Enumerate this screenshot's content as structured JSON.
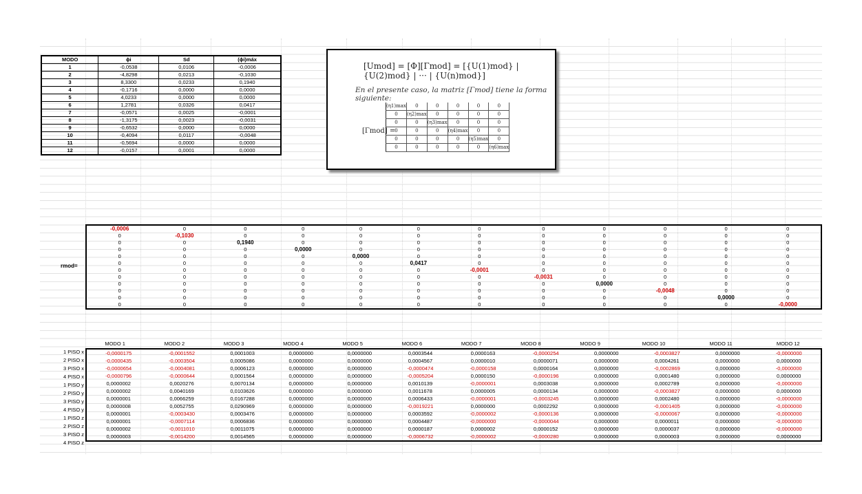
{
  "modo_table": {
    "headers": [
      "MODO",
      "ϕi",
      "Sd",
      "(ϕi)máx"
    ],
    "rows": [
      [
        "1",
        "-0,0538",
        "0,0106",
        "-0,0006"
      ],
      [
        "2",
        "-4,8298",
        "0,0213",
        "-0,1030"
      ],
      [
        "3",
        "8,3300",
        "0,0233",
        "0,1940"
      ],
      [
        "4",
        "-0,1716",
        "0,0000",
        "0,0000"
      ],
      [
        "5",
        "4,0233",
        "0,0000",
        "0,0000"
      ],
      [
        "6",
        "1,2781",
        "0,0326",
        "0,0417"
      ],
      [
        "7",
        "-0,0571",
        "0,0025",
        "-0,0001"
      ],
      [
        "8",
        "-1,3175",
        "0,0023",
        "-0,0031"
      ],
      [
        "9",
        "-0,6532",
        "0,0000",
        "0,0000"
      ],
      [
        "10",
        "-0,4094",
        "0,0117",
        "-0,0048"
      ],
      [
        "11",
        "-0,5694",
        "0,0000",
        "0,0000"
      ],
      [
        "12",
        "-0,0157",
        "0,0001",
        "0,0000"
      ]
    ]
  },
  "formula": {
    "equation": "[Umod] = [Φ][Γmod] = [{U(1)mod} | {U(2)mod} | ··· | {U(n)mod}]",
    "description": "En el presente caso, la matriz [Γmod] tiene la forma siguiente:",
    "gamma_label": "[Γmod] =",
    "gamma_matrix": [
      [
        "(η1)max",
        "0",
        "0",
        "0",
        "0",
        "0"
      ],
      [
        "0",
        "(η2)max",
        "0",
        "0",
        "0",
        "0"
      ],
      [
        "0",
        "0",
        "(η3)max",
        "0",
        "0",
        "0"
      ],
      [
        "0",
        "0",
        "0",
        "(η4)max",
        "0",
        "0"
      ],
      [
        "0",
        "0",
        "0",
        "0",
        "(η5)max",
        "0"
      ],
      [
        "0",
        "0",
        "0",
        "0",
        "0",
        "(η6)max"
      ]
    ]
  },
  "rmod": {
    "label": "rmod=",
    "diagonal": [
      "-0,0006",
      "-0,1030",
      "0,1940",
      "0,0000",
      "0,0000",
      "0,0417",
      "-0,0001",
      "-0,0031",
      "0,0000",
      "-0,0048",
      "0,0000",
      "-0,0000"
    ],
    "diag_negative": [
      true,
      true,
      false,
      false,
      false,
      false,
      true,
      true,
      false,
      true,
      false,
      true
    ],
    "zero": "0"
  },
  "umod": {
    "headers": [
      "MODO 1",
      "MODO 2",
      "MODO 3",
      "MODO 4",
      "MODO 5",
      "MODO 6",
      "MODO 7",
      "MODO 8",
      "MODO 9",
      "MODO 10",
      "MODO 11",
      "MODO 12"
    ],
    "row_labels": [
      "1 PISO x",
      "2 PISO x",
      "3 PISO x",
      "4 PISO x",
      "1 PISO y",
      "2 PISO y",
      "3 PISO y",
      "4 PISO y",
      "1 PISO z",
      "2 PISO z",
      "3 PISO z",
      "4 PISO z"
    ],
    "rows": [
      [
        "-0,0000175",
        "-0,0001552",
        "0,0001003",
        "0,0000000",
        "0,0000000",
        "0,0003544",
        "0,0000163",
        "-0,0000254",
        "0,0000000",
        "-0,0003827",
        "0,0000000",
        "-0,0000000"
      ],
      [
        "-0,0000435",
        "-0,0003504",
        "0,0005086",
        "0,0000000",
        "0,0000000",
        "0,0004567",
        "0,0000010",
        "0,0000071",
        "0,0000000",
        "0,0004261",
        "0,0000000",
        "0,0000000"
      ],
      [
        "-0,0000654",
        "-0,0004081",
        "0,0006123",
        "0,0000000",
        "0,0000000",
        "-0,0000474",
        "-0,0000158",
        "0,0000164",
        "0,0000000",
        "-0,0002869",
        "0,0000000",
        "-0,0000000"
      ],
      [
        "-0,0000796",
        "-0,0000644",
        "0,0001564",
        "0,0000000",
        "0,0000000",
        "-0,0005204",
        "0,0000150",
        "-0,0000196",
        "0,0000000",
        "0,0001480",
        "0,0000000",
        "0,0000000"
      ],
      [
        "0,0000002",
        "0,0020276",
        "0,0070134",
        "0,0000000",
        "0,0000000",
        "0,0010139",
        "-0,0000001",
        "0,0003038",
        "0,0000000",
        "0,0002789",
        "0,0000000",
        "-0,0000000"
      ],
      [
        "0,0000002",
        "0,0040169",
        "0,0103626",
        "0,0000000",
        "0,0000000",
        "0,0011678",
        "0,0000005",
        "0,0000134",
        "0,0000000",
        "-0,0003827",
        "0,0000000",
        "0,0000000"
      ],
      [
        "0,0000001",
        "0,0066259",
        "0,0167288",
        "0,0000000",
        "0,0000000",
        "0,0006433",
        "-0,0000001",
        "-0,0003245",
        "0,0000000",
        "0,0002480",
        "0,0000000",
        "-0,0000000"
      ],
      [
        "0,0000008",
        "0,0052755",
        "0,0290969",
        "0,0000000",
        "0,0000000",
        "-0,0019221",
        "0,0000000",
        "0,0002292",
        "0,0000000",
        "-0,0001405",
        "0,0000000",
        "-0,0000000"
      ],
      [
        "0,0000001",
        "-0,0003430",
        "0,0003476",
        "0,0000000",
        "0,0000000",
        "0,0003592",
        "-0,0000002",
        "-0,0000136",
        "0,0000000",
        "-0,0000067",
        "0,0000000",
        "-0,0000000"
      ],
      [
        "0,0000001",
        "-0,0007114",
        "0,0006836",
        "0,0000000",
        "0,0000000",
        "0,0004487",
        "-0,0000000",
        "-0,0000044",
        "0,0000000",
        "0,0000011",
        "0,0000000",
        "-0,0000000"
      ],
      [
        "0,0000002",
        "-0,0011010",
        "0,0011075",
        "0,0000000",
        "0,0000000",
        "0,0000187",
        "0,0000002",
        "0,0000152",
        "0,0000000",
        "0,0000037",
        "0,0000000",
        "-0,0000000"
      ],
      [
        "0,0000003",
        "-0,0014200",
        "0,0014565",
        "0,0000000",
        "0,0000000",
        "-0,0006732",
        "-0,0000002",
        "-0,0000280",
        "0,0000000",
        "0,0000003",
        "0,0000000",
        "0,0000000"
      ]
    ]
  },
  "colors": {
    "negative": "#cc0000",
    "text": "#000000",
    "grid": "#e2e2e2"
  }
}
